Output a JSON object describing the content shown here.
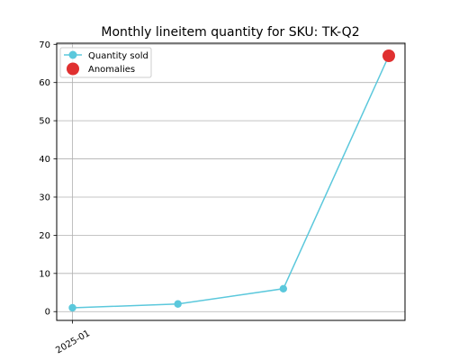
{
  "chart_data": {
    "type": "line",
    "title": "Monthly lineitem quantity for SKU: TK-Q2",
    "xlabel": "",
    "ylabel": "",
    "categories": [
      "2025-01",
      "",
      "",
      ""
    ],
    "series": [
      {
        "name": "Quantity sold",
        "type": "line",
        "values": [
          1,
          2,
          6,
          67
        ],
        "color": "#5bc8dc"
      },
      {
        "name": "Anomalies",
        "type": "scatter",
        "points": [
          {
            "index": 3,
            "value": 67
          }
        ],
        "color": "#e03030"
      }
    ],
    "ylim": [
      -2.3,
      70.3
    ],
    "yticks": [
      0,
      10,
      20,
      30,
      40,
      50,
      60,
      70
    ],
    "xticks_shown": [
      "2025-01"
    ],
    "grid": {
      "y": true,
      "x_at_labeled_ticks": true,
      "color": "#b0b0b0"
    },
    "legend_position": "top-left"
  }
}
